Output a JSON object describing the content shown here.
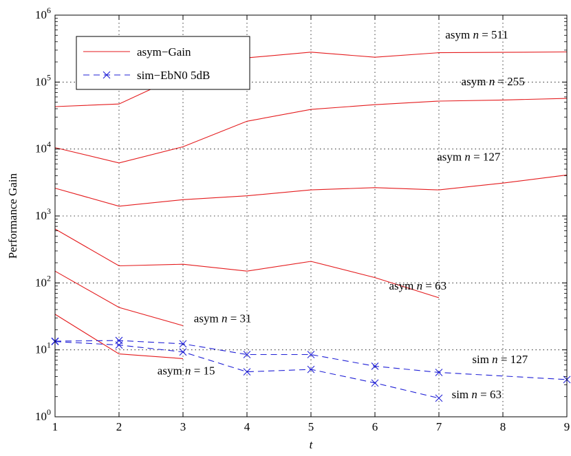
{
  "chart_data": {
    "type": "line",
    "xlabel": "t",
    "ylabel": "Performance Gain",
    "xlim": [
      1,
      9
    ],
    "ylim": [
      1,
      1000000
    ],
    "yscale": "log",
    "grid": true,
    "x_ticks": [
      "1",
      "2",
      "3",
      "4",
      "5",
      "6",
      "7",
      "8",
      "9"
    ],
    "y_ticks": [
      {
        "base": "10",
        "exp": "0",
        "value": 1
      },
      {
        "base": "10",
        "exp": "1",
        "value": 10
      },
      {
        "base": "10",
        "exp": "2",
        "value": 100
      },
      {
        "base": "10",
        "exp": "3",
        "value": 1000
      },
      {
        "base": "10",
        "exp": "4",
        "value": 10000
      },
      {
        "base": "10",
        "exp": "5",
        "value": 100000
      },
      {
        "base": "10",
        "exp": "6",
        "value": 1000000
      }
    ],
    "legend": {
      "placement": "top-left",
      "entries": [
        {
          "label": "asym−Gain",
          "style": "solid",
          "color": "#e41a1c",
          "marker": "none"
        },
        {
          "label": "sim−EbN0 5dB",
          "style": "dashed",
          "color": "#1f1fd6",
          "marker": "x"
        }
      ]
    },
    "series": [
      {
        "group": "asym",
        "color": "#e41a1c",
        "style": "solid",
        "marker": "none",
        "x": [
          1,
          2,
          3,
          4,
          5,
          6,
          7,
          8,
          9
        ],
        "y": [
          43000,
          47000,
          130000,
          230000,
          280000,
          235000,
          275000,
          278000,
          282000
        ]
      },
      {
        "group": "asym",
        "color": "#e41a1c",
        "style": "solid",
        "marker": "none",
        "x": [
          1,
          2,
          3,
          4,
          5,
          6,
          7,
          8,
          9
        ],
        "y": [
          10500,
          6200,
          10800,
          26000,
          39000,
          46000,
          52000,
          54000,
          57000
        ]
      },
      {
        "group": "asym",
        "color": "#e41a1c",
        "style": "solid",
        "marker": "none",
        "x": [
          1,
          2,
          3,
          4,
          5,
          6,
          7,
          8,
          9
        ],
        "y": [
          2600,
          1400,
          1750,
          2000,
          2450,
          2650,
          2450,
          3100,
          4100
        ]
      },
      {
        "group": "asym",
        "color": "#e41a1c",
        "style": "solid",
        "marker": "none",
        "x": [
          1,
          2,
          3,
          4,
          5,
          6,
          7
        ],
        "y": [
          640,
          180,
          190,
          150,
          210,
          120,
          60
        ]
      },
      {
        "group": "asym",
        "color": "#e41a1c",
        "style": "solid",
        "marker": "none",
        "x": [
          1,
          2,
          3
        ],
        "y": [
          150,
          43,
          23
        ]
      },
      {
        "group": "asym",
        "color": "#e41a1c",
        "style": "solid",
        "marker": "none",
        "x": [
          1,
          2,
          3
        ],
        "y": [
          34,
          8.7,
          7.4
        ]
      },
      {
        "group": "sim",
        "color": "#1f1fd6",
        "style": "dashed",
        "marker": "x",
        "x": [
          1,
          2,
          3,
          4,
          5,
          6,
          7,
          9
        ],
        "y": [
          13.5,
          13.8,
          12.3,
          8.5,
          8.5,
          5.7,
          4.6,
          3.6
        ]
      },
      {
        "group": "sim",
        "color": "#1f1fd6",
        "style": "dashed",
        "marker": "x",
        "x": [
          1,
          2,
          3,
          4,
          5,
          6,
          7
        ],
        "y": [
          13.3,
          11.8,
          9.3,
          4.7,
          5.1,
          3.2,
          1.9
        ]
      }
    ],
    "annotations": [
      {
        "prefix": "asym ",
        "var": "n",
        "suffix": " = 511",
        "x": 7.1,
        "y": 450000
      },
      {
        "prefix": "asym ",
        "var": "n",
        "suffix": " = 255",
        "x": 7.35,
        "y": 90000
      },
      {
        "prefix": "asym ",
        "var": "n",
        "suffix": " = 127",
        "x": 6.97,
        "y": 6700
      },
      {
        "prefix": "asym ",
        "var": "n",
        "suffix": " = 63",
        "x": 6.22,
        "y": 80
      },
      {
        "prefix": "asym ",
        "var": "n",
        "suffix": " = 31",
        "x": 3.17,
        "y": 26
      },
      {
        "prefix": "asym ",
        "var": "n",
        "suffix": " = 15",
        "x": 2.6,
        "y": 4.3
      },
      {
        "prefix": "sim ",
        "var": "n",
        "suffix": " = 127",
        "x": 7.52,
        "y": 6.3
      },
      {
        "prefix": "sim ",
        "var": "n",
        "suffix": " = 63",
        "x": 7.2,
        "y": 1.9
      }
    ]
  }
}
